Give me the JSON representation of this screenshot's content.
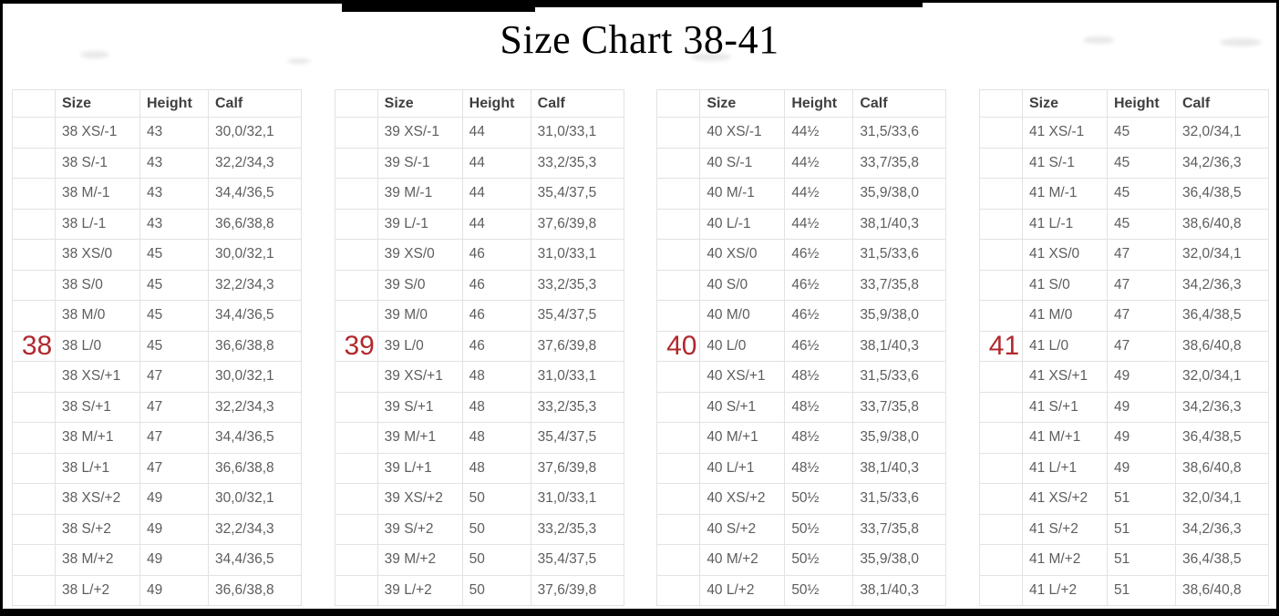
{
  "page": {
    "title": "Size Chart 38-41"
  },
  "colors": {
    "accent_red": "#b2282e",
    "header_text": "#3f3f3f",
    "cell_text": "#5d5d5d",
    "table_border": "#e2e2e2",
    "frame_black": "#000000"
  },
  "columns": [
    "Size",
    "Height",
    "Calf"
  ],
  "tables": [
    {
      "group": "38",
      "group_label_row": 7,
      "rows": [
        [
          "38 XS/-1",
          "43",
          "30,0/32,1"
        ],
        [
          "38 S/-1",
          "43",
          "32,2/34,3"
        ],
        [
          "38 M/-1",
          "43",
          "34,4/36,5"
        ],
        [
          "38 L/-1",
          "43",
          "36,6/38,8"
        ],
        [
          "38 XS/0",
          "45",
          "30,0/32,1"
        ],
        [
          "38 S/0",
          "45",
          "32,2/34,3"
        ],
        [
          "38 M/0",
          "45",
          "34,4/36,5"
        ],
        [
          "38 L/0",
          "45",
          "36,6/38,8"
        ],
        [
          "38 XS/+1",
          "47",
          "30,0/32,1"
        ],
        [
          "38 S/+1",
          "47",
          "32,2/34,3"
        ],
        [
          "38 M/+1",
          "47",
          "34,4/36,5"
        ],
        [
          "38 L/+1",
          "47",
          "36,6/38,8"
        ],
        [
          "38 XS/+2",
          "49",
          "30,0/32,1"
        ],
        [
          "38 S/+2",
          "49",
          "32,2/34,3"
        ],
        [
          "38 M/+2",
          "49",
          "34,4/36,5"
        ],
        [
          "38 L/+2",
          "49",
          "36,6/38,8"
        ]
      ]
    },
    {
      "group": "39",
      "group_label_row": 7,
      "rows": [
        [
          "39 XS/-1",
          "44",
          "31,0/33,1"
        ],
        [
          "39 S/-1",
          "44",
          "33,2/35,3"
        ],
        [
          "39 M/-1",
          "44",
          "35,4/37,5"
        ],
        [
          "39 L/-1",
          "44",
          "37,6/39,8"
        ],
        [
          "39 XS/0",
          "46",
          "31,0/33,1"
        ],
        [
          "39 S/0",
          "46",
          "33,2/35,3"
        ],
        [
          "39 M/0",
          "46",
          "35,4/37,5"
        ],
        [
          "39 L/0",
          "46",
          "37,6/39,8"
        ],
        [
          "39 XS/+1",
          "48",
          "31,0/33,1"
        ],
        [
          "39 S/+1",
          "48",
          "33,2/35,3"
        ],
        [
          "39 M/+1",
          "48",
          "35,4/37,5"
        ],
        [
          "39 L/+1",
          "48",
          "37,6/39,8"
        ],
        [
          "39 XS/+2",
          "50",
          "31,0/33,1"
        ],
        [
          "39 S/+2",
          "50",
          "33,2/35,3"
        ],
        [
          "39 M/+2",
          "50",
          "35,4/37,5"
        ],
        [
          "39 L/+2",
          "50",
          "37,6/39,8"
        ]
      ]
    },
    {
      "group": "40",
      "group_label_row": 7,
      "rows": [
        [
          "40 XS/-1",
          "44½",
          "31,5/33,6"
        ],
        [
          "40 S/-1",
          "44½",
          "33,7/35,8"
        ],
        [
          "40 M/-1",
          "44½",
          "35,9/38,0"
        ],
        [
          "40 L/-1",
          "44½",
          "38,1/40,3"
        ],
        [
          "40 XS/0",
          "46½",
          "31,5/33,6"
        ],
        [
          "40 S/0",
          "46½",
          "33,7/35,8"
        ],
        [
          "40 M/0",
          "46½",
          "35,9/38,0"
        ],
        [
          "40 L/0",
          "46½",
          "38,1/40,3"
        ],
        [
          "40 XS/+1",
          "48½",
          "31,5/33,6"
        ],
        [
          "40 S/+1",
          "48½",
          "33,7/35,8"
        ],
        [
          "40 M/+1",
          "48½",
          "35,9/38,0"
        ],
        [
          "40 L/+1",
          "48½",
          "38,1/40,3"
        ],
        [
          "40 XS/+2",
          "50½",
          "31,5/33,6"
        ],
        [
          "40 S/+2",
          "50½",
          "33,7/35,8"
        ],
        [
          "40 M/+2",
          "50½",
          "35,9/38,0"
        ],
        [
          "40 L/+2",
          "50½",
          "38,1/40,3"
        ]
      ]
    },
    {
      "group": "41",
      "group_label_row": 7,
      "rows": [
        [
          "41 XS/-1",
          "45",
          "32,0/34,1"
        ],
        [
          "41 S/-1",
          "45",
          "34,2/36,3"
        ],
        [
          "41 M/-1",
          "45",
          "36,4/38,5"
        ],
        [
          "41 L/-1",
          "45",
          "38,6/40,8"
        ],
        [
          "41 XS/0",
          "47",
          "32,0/34,1"
        ],
        [
          "41 S/0",
          "47",
          "34,2/36,3"
        ],
        [
          "41 M/0",
          "47",
          "36,4/38,5"
        ],
        [
          "41 L/0",
          "47",
          "38,6/40,8"
        ],
        [
          "41 XS/+1",
          "49",
          "32,0/34,1"
        ],
        [
          "41 S/+1",
          "49",
          "34,2/36,3"
        ],
        [
          "41 M/+1",
          "49",
          "36,4/38,5"
        ],
        [
          "41 L/+1",
          "49",
          "38,6/40,8"
        ],
        [
          "41 XS/+2",
          "51",
          "32,0/34,1"
        ],
        [
          "41 S/+2",
          "51",
          "34,2/36,3"
        ],
        [
          "41 M/+2",
          "51",
          "36,4/38,5"
        ],
        [
          "41 L/+2",
          "51",
          "38,6/40,8"
        ]
      ]
    }
  ]
}
